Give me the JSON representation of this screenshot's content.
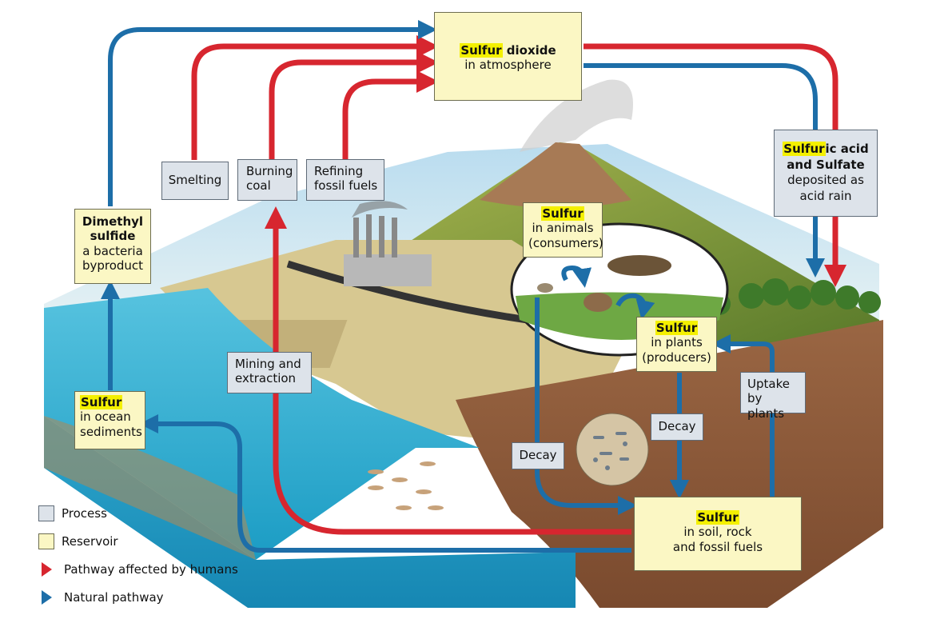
{
  "colors": {
    "human_pathway": "#d7262f",
    "natural_pathway": "#1d6ea8",
    "process_fill": "#dde3ea",
    "reservoir_fill": "#fbf7c4",
    "highlight": "#f4f000",
    "ocean": "#3fb6d6",
    "soil": "#8b5a3c",
    "land": "#cfc08a"
  },
  "reservoirs": {
    "sulfur_dioxide": {
      "highlight": "Sulfur",
      "bold": " dioxide",
      "sub": "in atmosphere"
    },
    "sulfuric_acid": {
      "highlight": "Sulfur",
      "bold1": "ic acid",
      "bold2": "and Sulfate",
      "sub1": "deposited as",
      "sub2": "acid rain"
    },
    "dimethyl_sulfide": {
      "bold1": "Dimethyl",
      "bold2": "sulfide",
      "sub1": "a bacteria",
      "sub2": "byproduct"
    },
    "animals": {
      "highlight": "Sulfur",
      "sub1": "in animals",
      "sub2": "(consumers)"
    },
    "plants": {
      "highlight": "Sulfur",
      "sub1": "in plants",
      "sub2": "(producers)"
    },
    "ocean_sediments": {
      "highlight": "Sulfur",
      "sub1": "in ocean",
      "sub2": "sediments"
    },
    "soil": {
      "highlight": "Sulfur",
      "sub1": "in soil, rock",
      "sub2": "and fossil fuels"
    }
  },
  "processes": {
    "smelting": "Smelting",
    "burning_coal": {
      "l1": "Burning",
      "l2": "coal"
    },
    "refining": {
      "l1": "Refining",
      "l2": "fossil fuels"
    },
    "mining": {
      "l1": "Mining and",
      "l2": "extraction"
    },
    "decay_animals": "Decay",
    "decay_plants": "Decay",
    "uptake": {
      "l1": "Uptake",
      "l2": "by plants"
    }
  },
  "legend": {
    "process": "Process",
    "reservoir": "Reservoir",
    "human": "Pathway affected by humans",
    "natural": "Natural pathway"
  }
}
